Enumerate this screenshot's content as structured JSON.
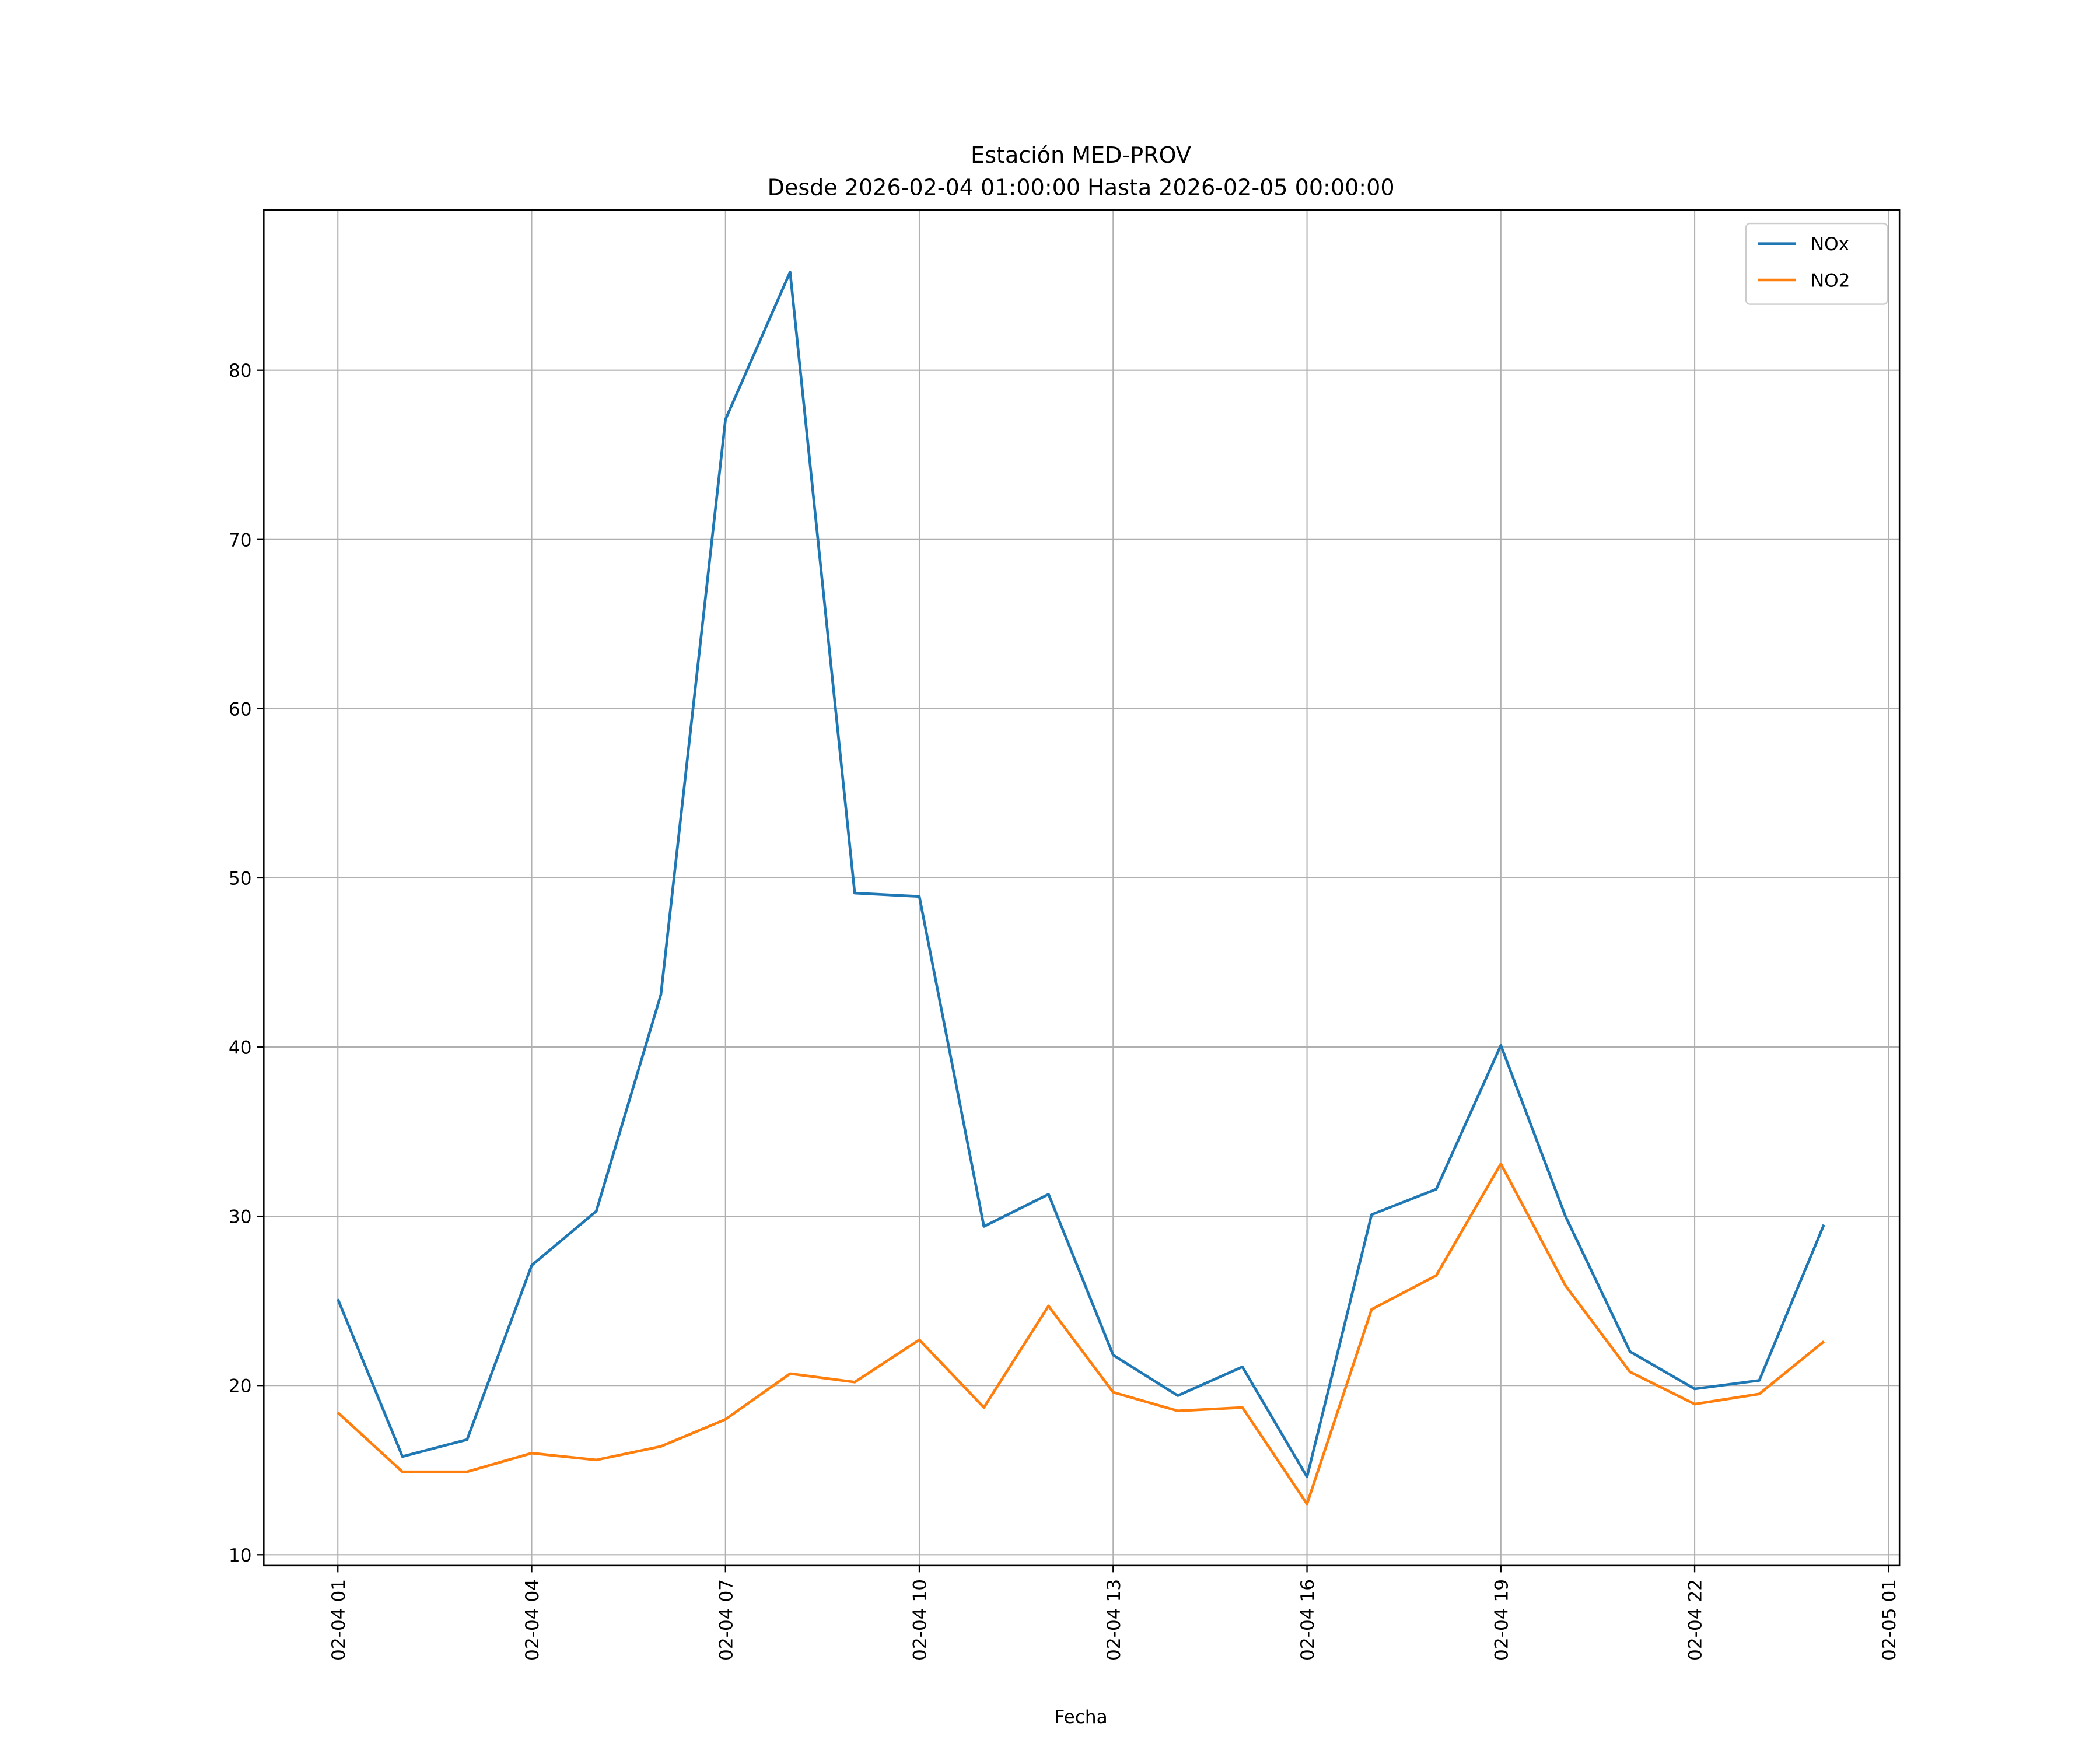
{
  "chart_data": {
    "type": "line",
    "title": "Estación MED-PROV",
    "subtitle": "Desde 2026-02-04 01:00:00 Hasta 2026-02-05 00:00:00",
    "xlabel": "Fecha",
    "ylabel": "",
    "x_hours": [
      1,
      2,
      3,
      4,
      5,
      6,
      7,
      8,
      9,
      10,
      11,
      12,
      13,
      14,
      15,
      16,
      17,
      18,
      19,
      20,
      21,
      22,
      23,
      24
    ],
    "xlim_hours": [
      -0.146,
      25.17
    ],
    "ylim": [
      9.36,
      89.47
    ],
    "x_ticks": [
      {
        "hour": 1,
        "label": "02-04 01"
      },
      {
        "hour": 4,
        "label": "02-04 04"
      },
      {
        "hour": 7,
        "label": "02-04 07"
      },
      {
        "hour": 10,
        "label": "02-04 10"
      },
      {
        "hour": 13,
        "label": "02-04 13"
      },
      {
        "hour": 16,
        "label": "02-04 16"
      },
      {
        "hour": 19,
        "label": "02-04 19"
      },
      {
        "hour": 22,
        "label": "02-04 22"
      },
      {
        "hour": 25,
        "label": "02-05 01"
      }
    ],
    "y_ticks": [
      "10",
      "20",
      "30",
      "40",
      "50",
      "60",
      "70",
      "80"
    ],
    "grid": true,
    "legend_position": "top-right",
    "series": [
      {
        "name": "NOx",
        "color": "#1f77b4",
        "values": [
          25.1,
          15.8,
          16.8,
          27.1,
          30.3,
          43.1,
          77.1,
          85.8,
          49.1,
          48.9,
          29.4,
          31.3,
          21.8,
          19.4,
          21.1,
          14.6,
          30.1,
          31.6,
          40.1,
          30.0,
          22.0,
          19.8,
          20.3,
          29.5
        ]
      },
      {
        "name": "NO2",
        "color": "#ff7f0e",
        "values": [
          18.4,
          14.9,
          14.9,
          16.0,
          15.6,
          16.4,
          18.0,
          20.7,
          20.2,
          22.7,
          18.7,
          24.7,
          19.6,
          18.5,
          18.7,
          13.0,
          24.5,
          26.5,
          33.1,
          25.9,
          20.8,
          18.9,
          19.5,
          22.6
        ]
      }
    ]
  }
}
